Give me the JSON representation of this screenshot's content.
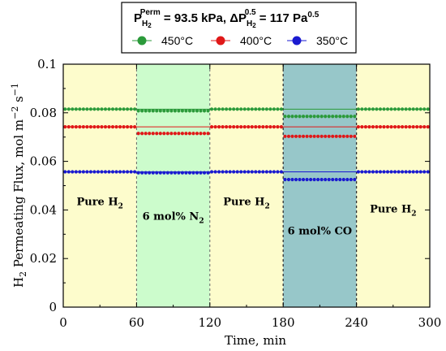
{
  "chart_data": {
    "type": "scatter",
    "title": {
      "p_label": "P",
      "p_sub": "H",
      "p_sub2": "2",
      "p_sup": "Perm",
      "p_value": " = 93.5 kPa, ",
      "dp_label": "ΔP",
      "dp_sub": "H",
      "dp_sub2": "2",
      "dp_sup": "0.5",
      "dp_value": " = 117 Pa",
      "dp_unit_sup": "0.5"
    },
    "xlabel": "Time, min",
    "ylabel": {
      "prefix": "H",
      "sub": "2",
      "text": " Permeating Flux, mol m",
      "sup1": "−2",
      "mid": " s",
      "sup2": "−1"
    },
    "xlim": [
      0,
      300
    ],
    "ylim": [
      0,
      0.1
    ],
    "xticks": [
      "0",
      "60",
      "120",
      "180",
      "240",
      "300"
    ],
    "yticks": [
      "0",
      "0.02",
      "0.04",
      "0.06",
      "0.08",
      "0.1"
    ],
    "legend_position": "top-center",
    "regions": [
      {
        "x0": 0,
        "x1": 60,
        "color": "#fdfccc",
        "label": "Pure H",
        "label_sub": "2",
        "label_y": 0.042
      },
      {
        "x0": 60,
        "x1": 120,
        "color": "#ccfccc",
        "label": "6 mol% N",
        "label_sub": "2",
        "label_y": 0.036
      },
      {
        "x0": 120,
        "x1": 180,
        "color": "#fdfccc",
        "label": "Pure H",
        "label_sub": "2",
        "label_y": 0.042
      },
      {
        "x0": 180,
        "x1": 240,
        "color": "#97c7c9",
        "label": "6 mol% CO",
        "label_sub": "",
        "label_y": 0.03
      },
      {
        "x0": 240,
        "x1": 300,
        "color": "#fdfccc",
        "label": "Pure H",
        "label_sub": "2",
        "label_y": 0.039
      }
    ],
    "series": [
      {
        "name": "450°C",
        "color": "#2b9a3a",
        "reference": 0.0815,
        "segments": [
          [
            0,
            60,
            0.0815
          ],
          [
            60,
            120,
            0.0808
          ],
          [
            120,
            180,
            0.0815
          ],
          [
            180,
            240,
            0.0785
          ],
          [
            240,
            300,
            0.0815
          ]
        ]
      },
      {
        "name": "400°C",
        "color": "#e01818",
        "reference": 0.0742,
        "segments": [
          [
            0,
            60,
            0.0742
          ],
          [
            60,
            120,
            0.0715
          ],
          [
            120,
            180,
            0.0742
          ],
          [
            180,
            240,
            0.0703
          ],
          [
            240,
            300,
            0.0742
          ]
        ]
      },
      {
        "name": "350°C",
        "color": "#1a1ad0",
        "reference": 0.0557,
        "segments": [
          [
            0,
            60,
            0.0557
          ],
          [
            60,
            120,
            0.0553
          ],
          [
            120,
            180,
            0.0557
          ],
          [
            180,
            240,
            0.0525
          ],
          [
            240,
            300,
            0.0557
          ]
        ]
      }
    ]
  }
}
